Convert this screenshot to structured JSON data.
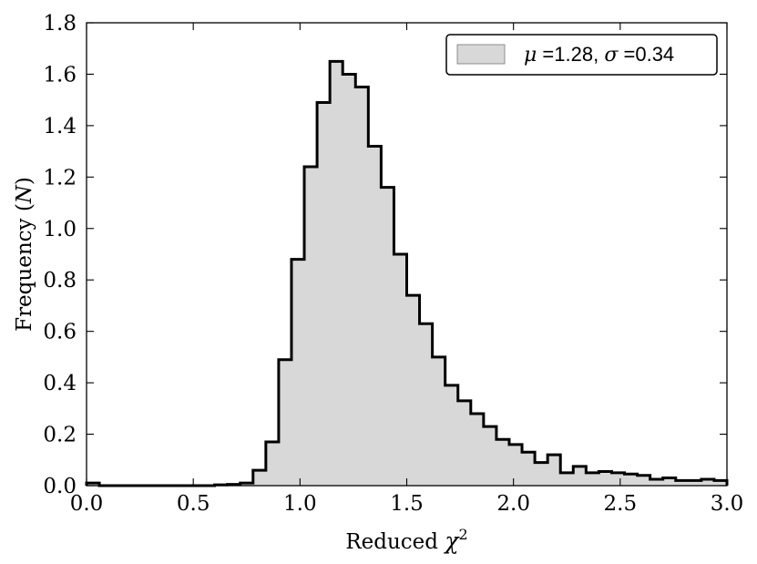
{
  "chart_data": {
    "type": "bar",
    "histogram": true,
    "xlabel": "Reduced χ²",
    "xlabel_base": "Reduced ",
    "xlabel_symbol": "χ",
    "xlabel_sup": "2",
    "ylabel": "Frequency (N)",
    "ylabel_prefix": "Frequency (",
    "ylabel_symbol": "N",
    "ylabel_suffix": ")",
    "xlim": [
      0.0,
      3.0
    ],
    "ylim": [
      0.0,
      1.8
    ],
    "xticks": [
      "0.0",
      "0.5",
      "1.0",
      "1.5",
      "2.0",
      "2.5",
      "3.0"
    ],
    "yticks": [
      "0.0",
      "0.2",
      "0.4",
      "0.6",
      "0.8",
      "1.0",
      "1.2",
      "1.4",
      "1.6",
      "1.8"
    ],
    "grid": false,
    "legend_position": "top-right",
    "series": [
      {
        "legend": {
          "mu_symbol": "μ",
          "eq": " =",
          "mu_value": "1.28",
          "sep": ", ",
          "sigma_symbol": "σ",
          "sigma_value": "0.34"
        },
        "fill_color": "#d8d8d8",
        "edge_color": "#000000",
        "bin_width": 0.06,
        "bin_start": 0.0,
        "values": [
          0.01,
          0.0,
          0.0,
          0.0,
          0.0,
          0.0,
          0.0,
          0.0,
          0.0,
          0.0,
          0.003,
          0.005,
          0.01,
          0.06,
          0.17,
          0.49,
          0.88,
          1.24,
          1.49,
          1.65,
          1.6,
          1.55,
          1.32,
          1.16,
          0.9,
          0.74,
          0.63,
          0.5,
          0.39,
          0.33,
          0.28,
          0.23,
          0.18,
          0.16,
          0.13,
          0.09,
          0.12,
          0.05,
          0.075,
          0.05,
          0.055,
          0.05,
          0.045,
          0.04,
          0.025,
          0.03,
          0.02,
          0.02,
          0.025,
          0.02
        ]
      }
    ]
  }
}
